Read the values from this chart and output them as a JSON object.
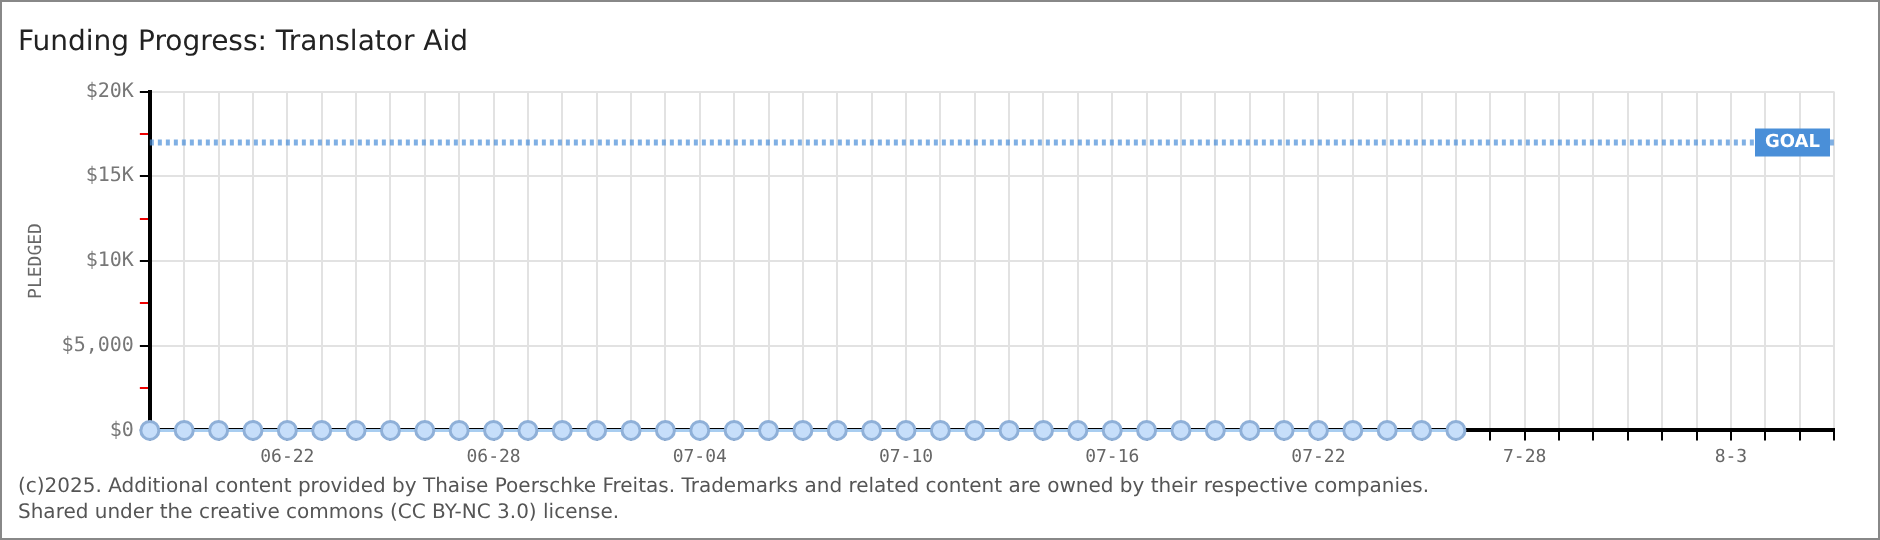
{
  "chart_data": {
    "type": "line",
    "title": "Funding Progress: Translator Aid",
    "ylabel": "PLEDGED",
    "categories": [
      null,
      null,
      null,
      null,
      "06-22",
      null,
      null,
      null,
      null,
      null,
      "06-28",
      null,
      null,
      null,
      null,
      null,
      "07-04",
      null,
      null,
      null,
      null,
      null,
      "07-10",
      null,
      null,
      null,
      null,
      null,
      "07-16",
      null,
      null,
      null,
      null,
      null,
      "07-22",
      null,
      null,
      null,
      null,
      null,
      "7-28",
      null,
      null,
      null,
      null,
      null,
      "8-3",
      null,
      null,
      null
    ],
    "series": [
      {
        "color": "#a8cdf0",
        "values": [
          0,
          0,
          0,
          0,
          0,
          0,
          0,
          0,
          0,
          0,
          0,
          0,
          0,
          0,
          0,
          0,
          0,
          0,
          0,
          0,
          0,
          0,
          0,
          0,
          0,
          0,
          0,
          0,
          0,
          0,
          0,
          0,
          0,
          0,
          0,
          0,
          0,
          0,
          0,
          null,
          null,
          null,
          null,
          null,
          null,
          null,
          null,
          null,
          null,
          null
        ]
      }
    ],
    "ylim": [
      0,
      20000
    ],
    "yticks": [
      {
        "value": 0,
        "label": "$0"
      },
      {
        "value": 2500,
        "label": null
      },
      {
        "value": 5000,
        "label": "$5,000"
      },
      {
        "value": 7500,
        "label": null
      },
      {
        "value": 10000,
        "label": "$10K"
      },
      {
        "value": 12500,
        "label": null
      },
      {
        "value": 15000,
        "label": "$15K"
      },
      {
        "value": 17500,
        "label": null
      },
      {
        "value": 20000,
        "label": "$20K"
      }
    ],
    "ref_lines": [
      {
        "axis": "y",
        "value": 17000,
        "label": "GOAL",
        "color": "#4a8fd8",
        "line_style": "dotted"
      }
    ],
    "grid": true,
    "legend": false,
    "marker": "circle",
    "line_style": "solid",
    "annotations": [
      "(c)2025. Additional content provided by Thaise Poerschke Freitas. Trademarks and related content are owned by their respective companies.",
      "Shared under the creative commons (CC BY-NC 3.0) license."
    ]
  }
}
